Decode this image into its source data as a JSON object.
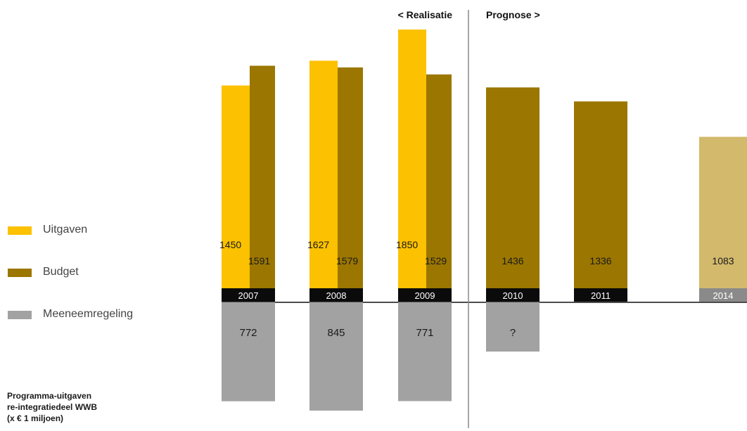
{
  "chart_data": {
    "type": "bar",
    "title": "",
    "sections": {
      "left": "< Realisatie",
      "right": "Prognose >"
    },
    "series": [
      {
        "key": "uitgaven",
        "name": "Uitgaven",
        "color": "#fcc100",
        "points": [
          {
            "year": "2007",
            "value": 1450
          },
          {
            "year": "2008",
            "value": 1627
          },
          {
            "year": "2009",
            "value": 1850
          }
        ]
      },
      {
        "key": "budget",
        "name": "Budget",
        "color": "#9b7600",
        "points": [
          {
            "year": "2007",
            "value": 1591
          },
          {
            "year": "2008",
            "value": 1579
          },
          {
            "year": "2009",
            "value": 1529
          },
          {
            "year": "2010",
            "value": 1436
          },
          {
            "year": "2011",
            "value": 1336
          },
          {
            "year": "2014",
            "value": 1083,
            "color": "#d2b96c"
          }
        ]
      },
      {
        "key": "meeneemregeling",
        "name": "Meeneemregeling",
        "color": "#a2a2a2",
        "points": [
          {
            "year": "2007",
            "value": 772,
            "label": "772"
          },
          {
            "year": "2008",
            "value": 845,
            "label": "845"
          },
          {
            "year": "2009",
            "value": 771,
            "label": "771"
          },
          {
            "year": "2010",
            "value": null,
            "label": "?"
          }
        ]
      }
    ],
    "years": [
      "2007",
      "2008",
      "2009",
      "2010",
      "2011",
      "2014"
    ],
    "legend": {
      "position": "left",
      "items": [
        {
          "label": "Uitgaven",
          "color": "#fcc100"
        },
        {
          "label": "Budget",
          "color": "#9b7600"
        },
        {
          "label": "Meeneemregeling",
          "color": "#a2a2a2"
        }
      ]
    },
    "footnote": [
      "Programma-uitgaven",
      "re-integratiedeel WWB",
      "(x € 1 miljoen)"
    ],
    "grid": false
  }
}
